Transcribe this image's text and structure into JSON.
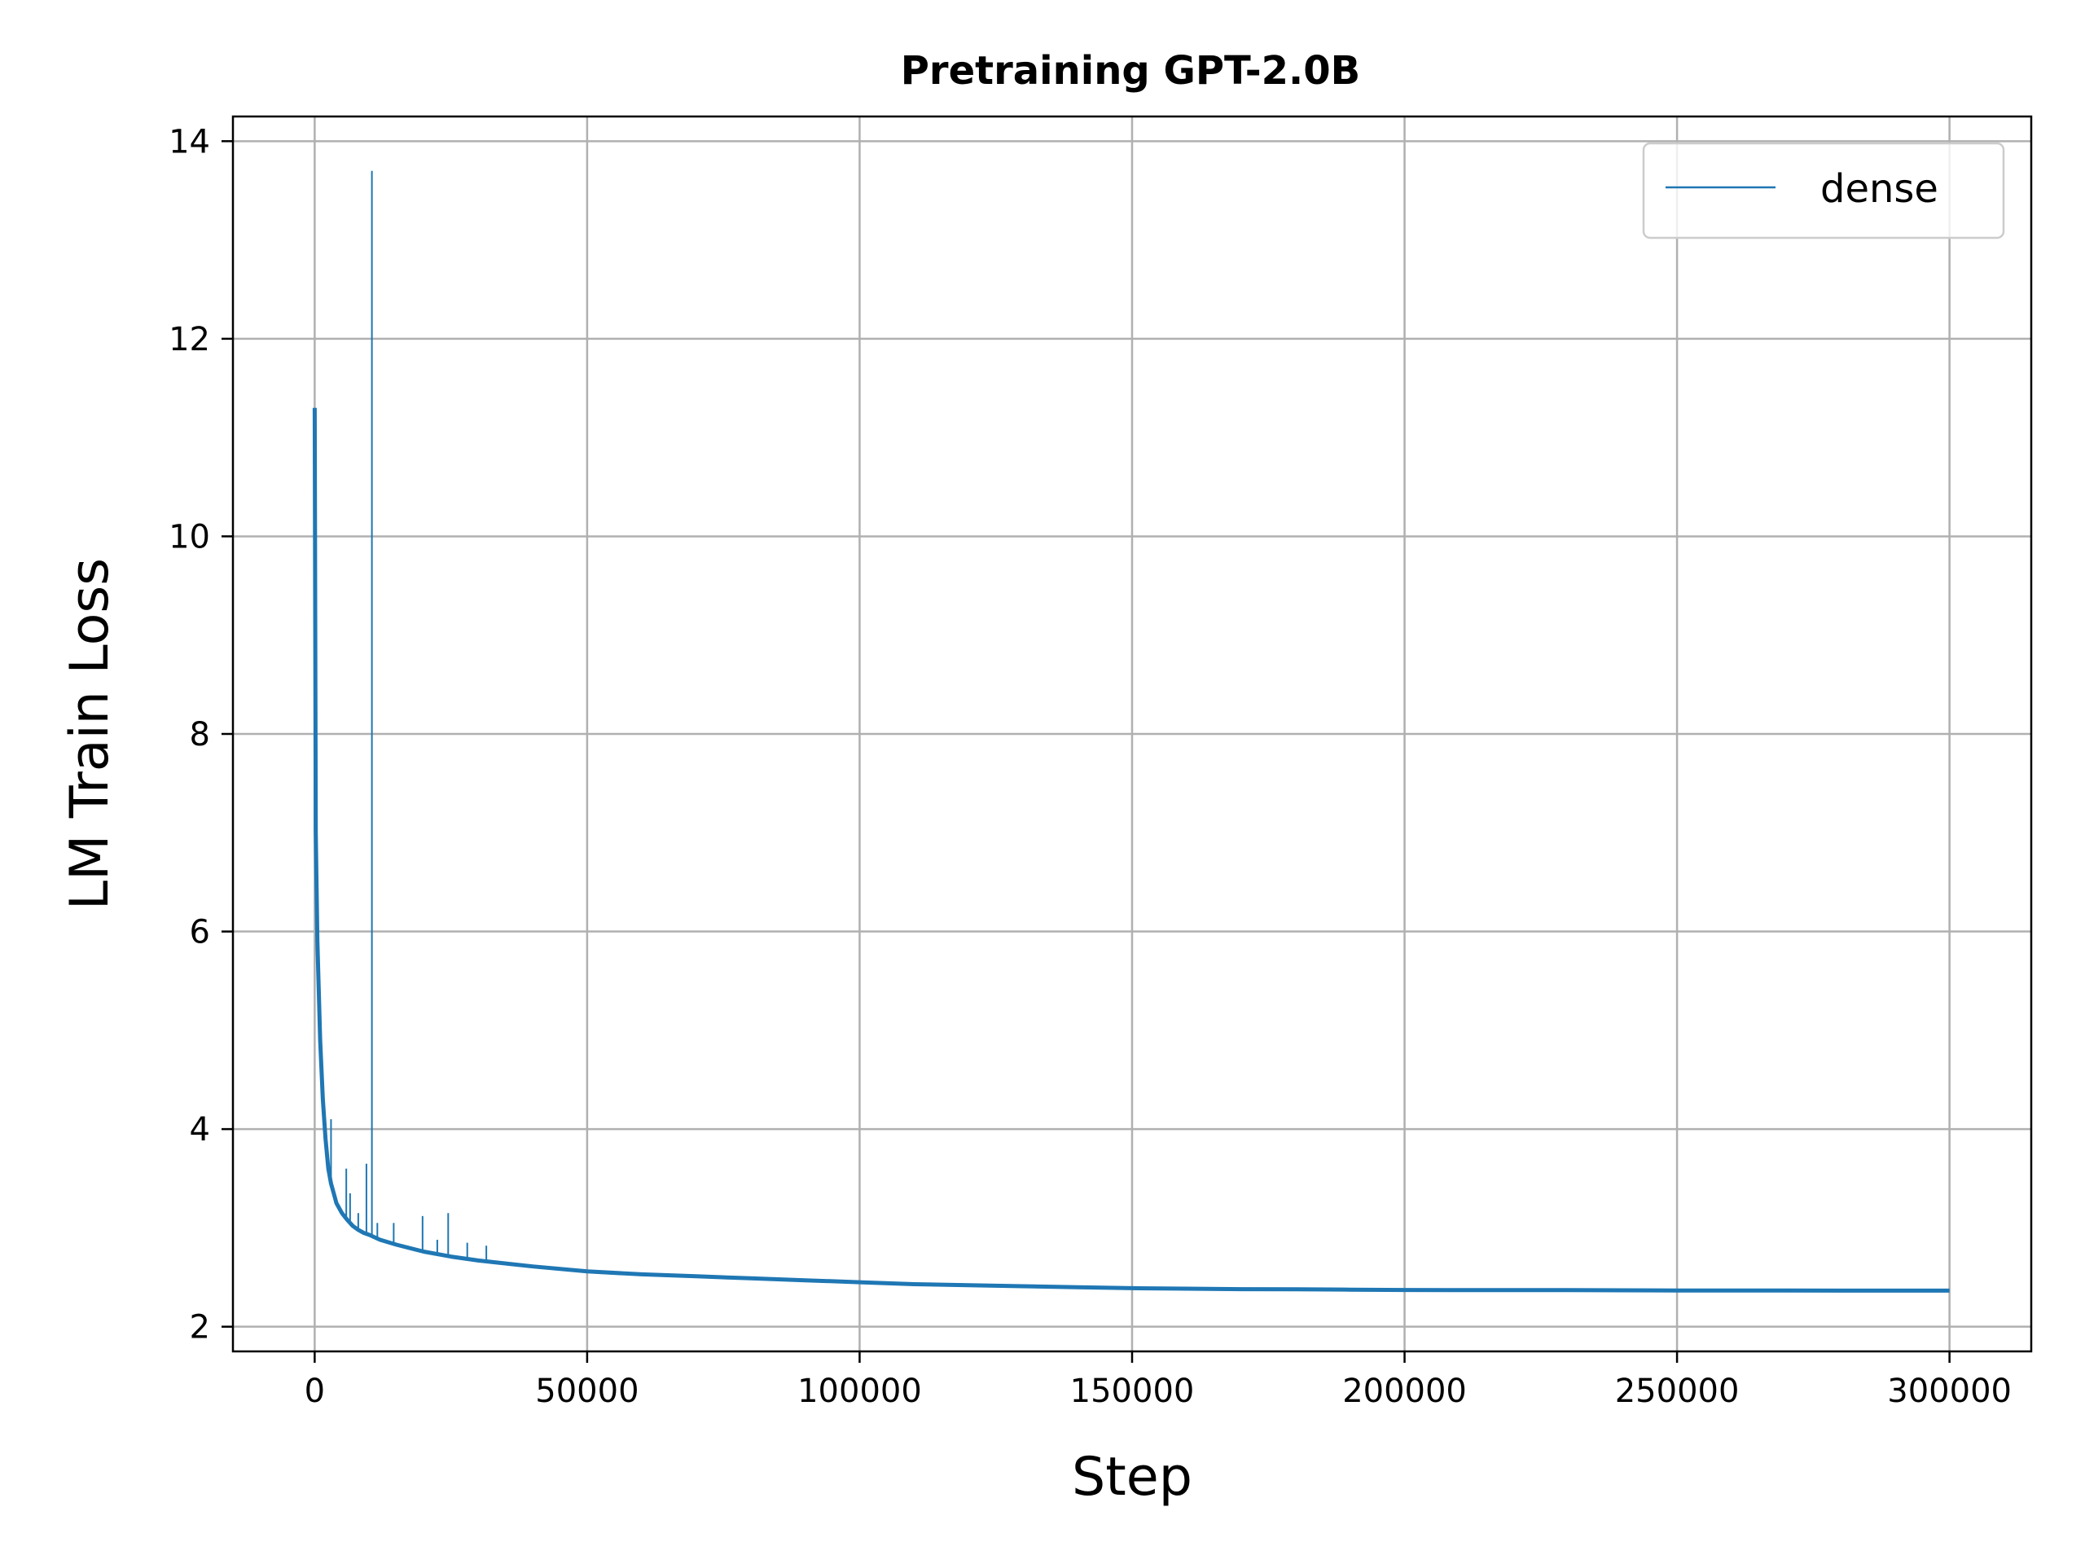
{
  "chart_data": {
    "type": "line",
    "title": "Pretraining GPT-2.0B",
    "xlabel": "Step",
    "ylabel": "LM Train Loss",
    "xlim": [
      -15000,
      315000
    ],
    "ylim": [
      1.75,
      14.25
    ],
    "xticks": [
      0,
      50000,
      100000,
      150000,
      200000,
      250000,
      300000
    ],
    "xtick_labels": [
      "0",
      "50000",
      "100000",
      "150000",
      "200000",
      "250000",
      "300000"
    ],
    "yticks": [
      2,
      4,
      6,
      8,
      10,
      12,
      14
    ],
    "ytick_labels": [
      "2",
      "4",
      "6",
      "8",
      "10",
      "12",
      "14"
    ],
    "grid": true,
    "legend_position": "top-right",
    "colors": {
      "dense": "#1f77b4",
      "grid": "#b0b0b0",
      "axes": "#000000"
    },
    "series": [
      {
        "name": "dense",
        "x": [
          0,
          200,
          500,
          1000,
          1500,
          2000,
          2500,
          3000,
          3500,
          4000,
          5000,
          6000,
          7000,
          8000,
          9000,
          10000,
          12000,
          15000,
          20000,
          25000,
          30000,
          40000,
          50000,
          60000,
          70000,
          80000,
          90000,
          100000,
          110000,
          120000,
          130000,
          140000,
          150000,
          160000,
          170000,
          180000,
          190000,
          200000,
          210000,
          220000,
          230000,
          240000,
          250000,
          260000,
          270000,
          280000,
          290000,
          300000
        ],
        "y": [
          11.3,
          7.0,
          5.9,
          4.9,
          4.3,
          3.9,
          3.6,
          3.45,
          3.35,
          3.25,
          3.15,
          3.08,
          3.02,
          2.98,
          2.95,
          2.93,
          2.88,
          2.83,
          2.76,
          2.71,
          2.67,
          2.61,
          2.56,
          2.53,
          2.51,
          2.49,
          2.47,
          2.45,
          2.43,
          2.42,
          2.41,
          2.4,
          2.39,
          2.385,
          2.38,
          2.378,
          2.375,
          2.372,
          2.37,
          2.37,
          2.37,
          2.368,
          2.367,
          2.366,
          2.366,
          2.365,
          2.365,
          2.365
        ]
      }
    ],
    "spikes": [
      {
        "x": 3000,
        "y": 4.1
      },
      {
        "x": 5800,
        "y": 3.6
      },
      {
        "x": 6500,
        "y": 3.35
      },
      {
        "x": 8000,
        "y": 3.15
      },
      {
        "x": 9500,
        "y": 3.65
      },
      {
        "x": 10500,
        "y": 13.7
      },
      {
        "x": 11500,
        "y": 3.05
      },
      {
        "x": 14500,
        "y": 3.05
      },
      {
        "x": 19800,
        "y": 3.12
      },
      {
        "x": 22500,
        "y": 2.88
      },
      {
        "x": 24500,
        "y": 3.15
      },
      {
        "x": 28000,
        "y": 2.85
      },
      {
        "x": 31500,
        "y": 2.82
      }
    ]
  }
}
